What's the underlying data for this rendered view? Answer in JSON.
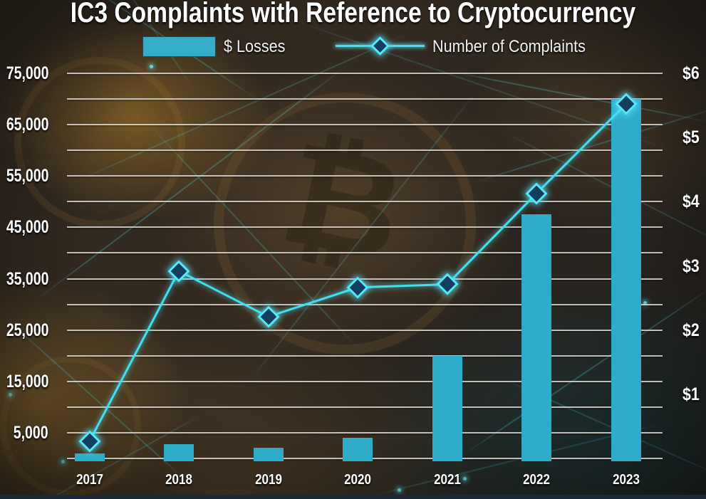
{
  "title": "IC3 Complaints with Reference to Cryptocurrency",
  "legend": {
    "losses_label": "$ Losses",
    "complaints_label": "Number of Complaints"
  },
  "colors": {
    "bar": "#2fabca",
    "line": "#41dff1",
    "marker_fill": "#133e5e",
    "marker_stroke": "#55e9fa",
    "gridline": "#e4ded6",
    "label_text": "#ffffff",
    "bottom_strip": "#1b2a37"
  },
  "chart_data": {
    "type": "combo-bar-line",
    "title": "IC3 Complaints with Reference to Cryptocurrency",
    "categories": [
      "2017",
      "2018",
      "2019",
      "2020",
      "2021",
      "2022",
      "2023"
    ],
    "series": [
      {
        "name": "$ Losses",
        "type": "bar",
        "axis": "right",
        "unit": "USD billions",
        "values": [
          0.08,
          0.22,
          0.17,
          0.32,
          1.6,
          3.8,
          5.6
        ]
      },
      {
        "name": "Number of Complaints",
        "type": "line",
        "axis": "left",
        "marker": "diamond",
        "values": [
          3300,
          36500,
          27600,
          33300,
          33900,
          51600,
          69000
        ]
      }
    ],
    "left_axis": {
      "min": 0,
      "max": 75000,
      "gridline_step": 5000,
      "tick_labels": [
        "75,000",
        "65,000",
        "55,000",
        "45,000",
        "35,000",
        "25,000",
        "15,000",
        "5,000"
      ],
      "tick_values": [
        75000,
        65000,
        55000,
        45000,
        35000,
        25000,
        15000,
        5000
      ]
    },
    "right_axis": {
      "min": 0,
      "max": 6,
      "tick_labels": [
        "$6",
        "$5",
        "$4",
        "$3",
        "$2",
        "$1"
      ],
      "tick_values": [
        6,
        5,
        4,
        3,
        2,
        1
      ]
    },
    "grid": true,
    "legend_position": "top"
  }
}
